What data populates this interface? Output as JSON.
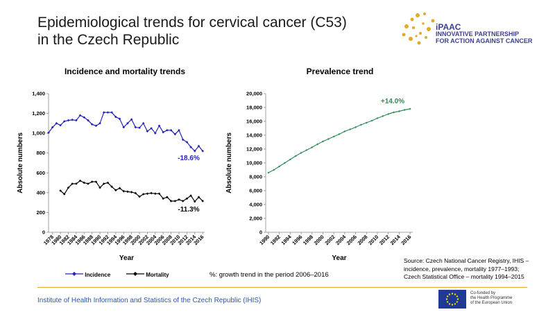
{
  "title_line1": "Epidemiological trends for cervical cancer (C53)",
  "title_line2": "in the Czech Republic",
  "logo": {
    "brand": "iPAAC",
    "line1": "INNOVATIVE PARTNERSHIP",
    "line2": "FOR ACTION AGAINST CANCER"
  },
  "colors": {
    "incidence": "#2323b8",
    "mortality": "#000000",
    "prevalence": "#2e8b57",
    "rule": "#e5a928",
    "footer": "#2a56a8"
  },
  "chart_data": [
    {
      "type": "line",
      "title": "Incidence and mortality trends",
      "xlabel": "Year",
      "ylabel": "Absolute numbers",
      "ylim": [
        0,
        1400
      ],
      "yticks": [
        0,
        200,
        400,
        600,
        800,
        "1,000",
        "1,200",
        "1,400"
      ],
      "x_tick_labels": [
        "1978",
        "1980",
        "1982",
        "1984",
        "1986",
        "1988",
        "1990",
        "1992",
        "1994",
        "1996",
        "1998",
        "2000",
        "2002",
        "2004",
        "2006",
        "2008",
        "2010",
        "2012",
        "2014",
        "2016"
      ],
      "series": [
        {
          "name": "Incidence",
          "x": [
            1977,
            1978,
            1979,
            1980,
            1981,
            1982,
            1983,
            1984,
            1985,
            1986,
            1987,
            1988,
            1989,
            1990,
            1991,
            1992,
            1993,
            1994,
            1995,
            1996,
            1997,
            1998,
            1999,
            2000,
            2001,
            2002,
            2003,
            2004,
            2005,
            2006,
            2007,
            2008,
            2009,
            2010,
            2011,
            2012,
            2013,
            2014,
            2015,
            2016
          ],
          "values": [
            1005,
            1060,
            1100,
            1080,
            1120,
            1130,
            1135,
            1130,
            1180,
            1160,
            1130,
            1090,
            1075,
            1100,
            1210,
            1210,
            1210,
            1165,
            1145,
            1060,
            1100,
            1140,
            1060,
            1055,
            1100,
            1020,
            1050,
            1000,
            1075,
            1010,
            1030,
            1030,
            990,
            1030,
            935,
            910,
            860,
            820,
            870,
            820
          ],
          "annotation": "-18.6%"
        },
        {
          "name": "Mortality",
          "x": [
            1980,
            1981,
            1982,
            1983,
            1984,
            1985,
            1986,
            1987,
            1988,
            1989,
            1990,
            1991,
            1992,
            1993,
            1994,
            1995,
            1996,
            1997,
            1998,
            1999,
            2000,
            2001,
            2002,
            2003,
            2004,
            2005,
            2006,
            2007,
            2008,
            2009,
            2010,
            2011,
            2012,
            2013,
            2014,
            2015,
            2016
          ],
          "values": [
            420,
            385,
            450,
            490,
            490,
            520,
            500,
            490,
            510,
            510,
            450,
            490,
            500,
            460,
            425,
            445,
            415,
            410,
            405,
            395,
            360,
            385,
            390,
            395,
            390,
            390,
            340,
            355,
            315,
            315,
            330,
            315,
            340,
            370,
            310,
            355,
            315
          ],
          "annotation": "-11.3%"
        }
      ]
    },
    {
      "type": "line",
      "title": "Prevalence trend",
      "xlabel": "Year",
      "ylabel": "Absolute numbers",
      "ylim": [
        0,
        20000
      ],
      "yticks": [
        "0",
        "2,000",
        "4,000",
        "6,000",
        "8,000",
        "10,000",
        "12,000",
        "14,000",
        "16,000",
        "18,000",
        "20,000"
      ],
      "x_tick_labels": [
        "1990",
        "1992",
        "1994",
        "1996",
        "1998",
        "2000",
        "2002",
        "2004",
        "2006",
        "2008",
        "2010",
        "2012",
        "2014",
        "2016"
      ],
      "series": [
        {
          "name": "Prevalence",
          "x": [
            1990,
            1991,
            1992,
            1993,
            1994,
            1995,
            1996,
            1997,
            1998,
            1999,
            2000,
            2001,
            2002,
            2003,
            2004,
            2005,
            2006,
            2007,
            2008,
            2009,
            2010,
            2011,
            2012,
            2013,
            2014,
            2015,
            2016
          ],
          "values": [
            8600,
            9000,
            9500,
            10000,
            10500,
            11000,
            11450,
            11850,
            12250,
            12700,
            13100,
            13450,
            13800,
            14150,
            14550,
            14850,
            15150,
            15500,
            15800,
            16100,
            16450,
            16750,
            17050,
            17300,
            17450,
            17650,
            17800
          ],
          "annotation": "+14.0%"
        }
      ]
    }
  ],
  "legend": {
    "incidence": "Incidence",
    "mortality": "Mortality"
  },
  "growth_note": "%: growth trend in the period 2006–2016",
  "source": {
    "line1": "Source: Czech National Cancer Registry, IHIS –",
    "line2": "incidence, prevalence, mortality 1977–1993;",
    "line3": "Czech Statistical Office – mortality 1994–2015"
  },
  "footer": "Institute of Health Information and Statistics of the Czech Republic (IHIS)",
  "eu_text": {
    "line1": "Co-funded by",
    "line2": "the Health Programme",
    "line3": "of the European Union"
  }
}
